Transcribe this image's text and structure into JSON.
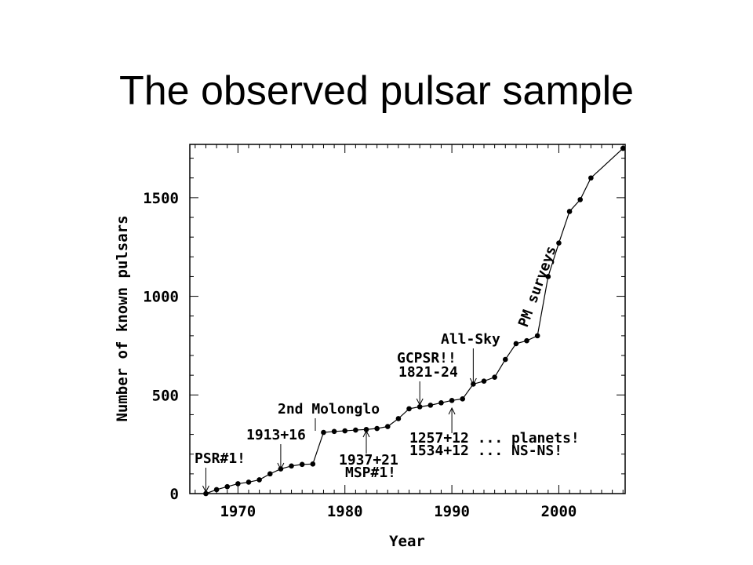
{
  "slide": {
    "title": "The observed pulsar sample"
  },
  "chart_data": {
    "type": "line",
    "title": "",
    "xlabel": "Year",
    "ylabel": "Number of known pulsars",
    "xlim": [
      1965.5,
      2006.2
    ],
    "ylim": [
      0,
      1770
    ],
    "xticks": [
      1970,
      1980,
      1990,
      2000
    ],
    "yticks": [
      0,
      500,
      1000,
      1500
    ],
    "grid": false,
    "series": [
      {
        "x": [
          1967,
          1968,
          1969,
          1970,
          1971,
          1972,
          1973,
          1974,
          1975,
          1976,
          1977,
          1978,
          1979,
          1980,
          1981,
          1982,
          1983,
          1984,
          1985,
          1986,
          1987,
          1988,
          1989,
          1990,
          1991,
          1992,
          1993,
          1994,
          1995,
          1996,
          1997,
          1998,
          1999,
          2000,
          2001,
          2002,
          2003,
          2006
        ],
        "y": [
          0,
          20,
          35,
          50,
          58,
          70,
          100,
          125,
          140,
          148,
          150,
          310,
          315,
          318,
          322,
          325,
          330,
          340,
          380,
          430,
          440,
          448,
          460,
          472,
          480,
          555,
          570,
          590,
          680,
          760,
          775,
          800,
          1100,
          1270,
          1430,
          1490,
          1600,
          1750
        ]
      }
    ],
    "annotations": [
      {
        "text": "PSR#1!",
        "x": 1967
      },
      {
        "text": "1913+16",
        "x": 1974
      },
      {
        "text": "2nd Molonglo",
        "x": 1977.5
      },
      {
        "text": "1937+21",
        "x": 1982
      },
      {
        "text": "MSP#1!",
        "x": 1982
      },
      {
        "text": "GCPSR!!",
        "x": 1987
      },
      {
        "text": "1821-24",
        "x": 1987
      },
      {
        "text": "All-Sky",
        "x": 1992
      },
      {
        "text": "1257+12 ... planets!",
        "x": 1990
      },
      {
        "text": "1534+12 ... NS-NS!",
        "x": 1990
      },
      {
        "text": "PM surveys",
        "x": 1997.5
      }
    ]
  }
}
